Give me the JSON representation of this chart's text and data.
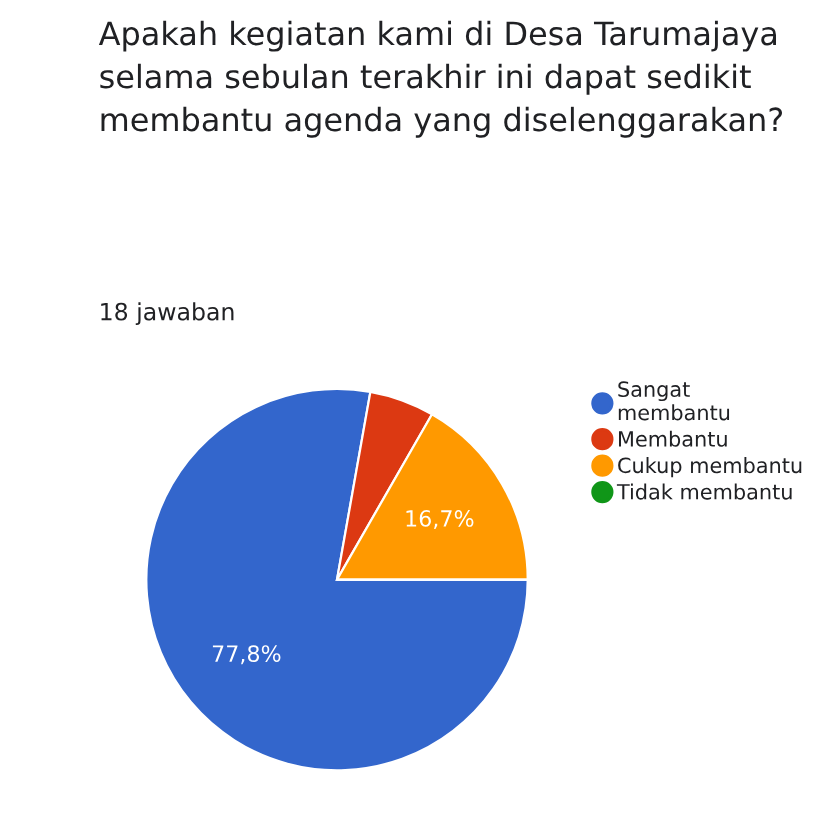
{
  "chart_data": {
    "type": "pie",
    "title": "Apakah kegiatan kami di Desa Tarumajaya selama sebulan terakhir ini dapat sedikit membantu agenda yang diselenggarakan?",
    "subtitle": "18 jawaban",
    "categories": [
      "Sangat membantu",
      "Membantu",
      "Cukup membantu",
      "Tidak membantu"
    ],
    "values": [
      77.8,
      5.5,
      16.7,
      0
    ],
    "colors": [
      "#3366cc",
      "#dc3912",
      "#ff9900",
      "#109618"
    ],
    "value_labels": [
      "77,8%",
      null,
      "16,7%",
      null
    ],
    "legend": "right"
  }
}
